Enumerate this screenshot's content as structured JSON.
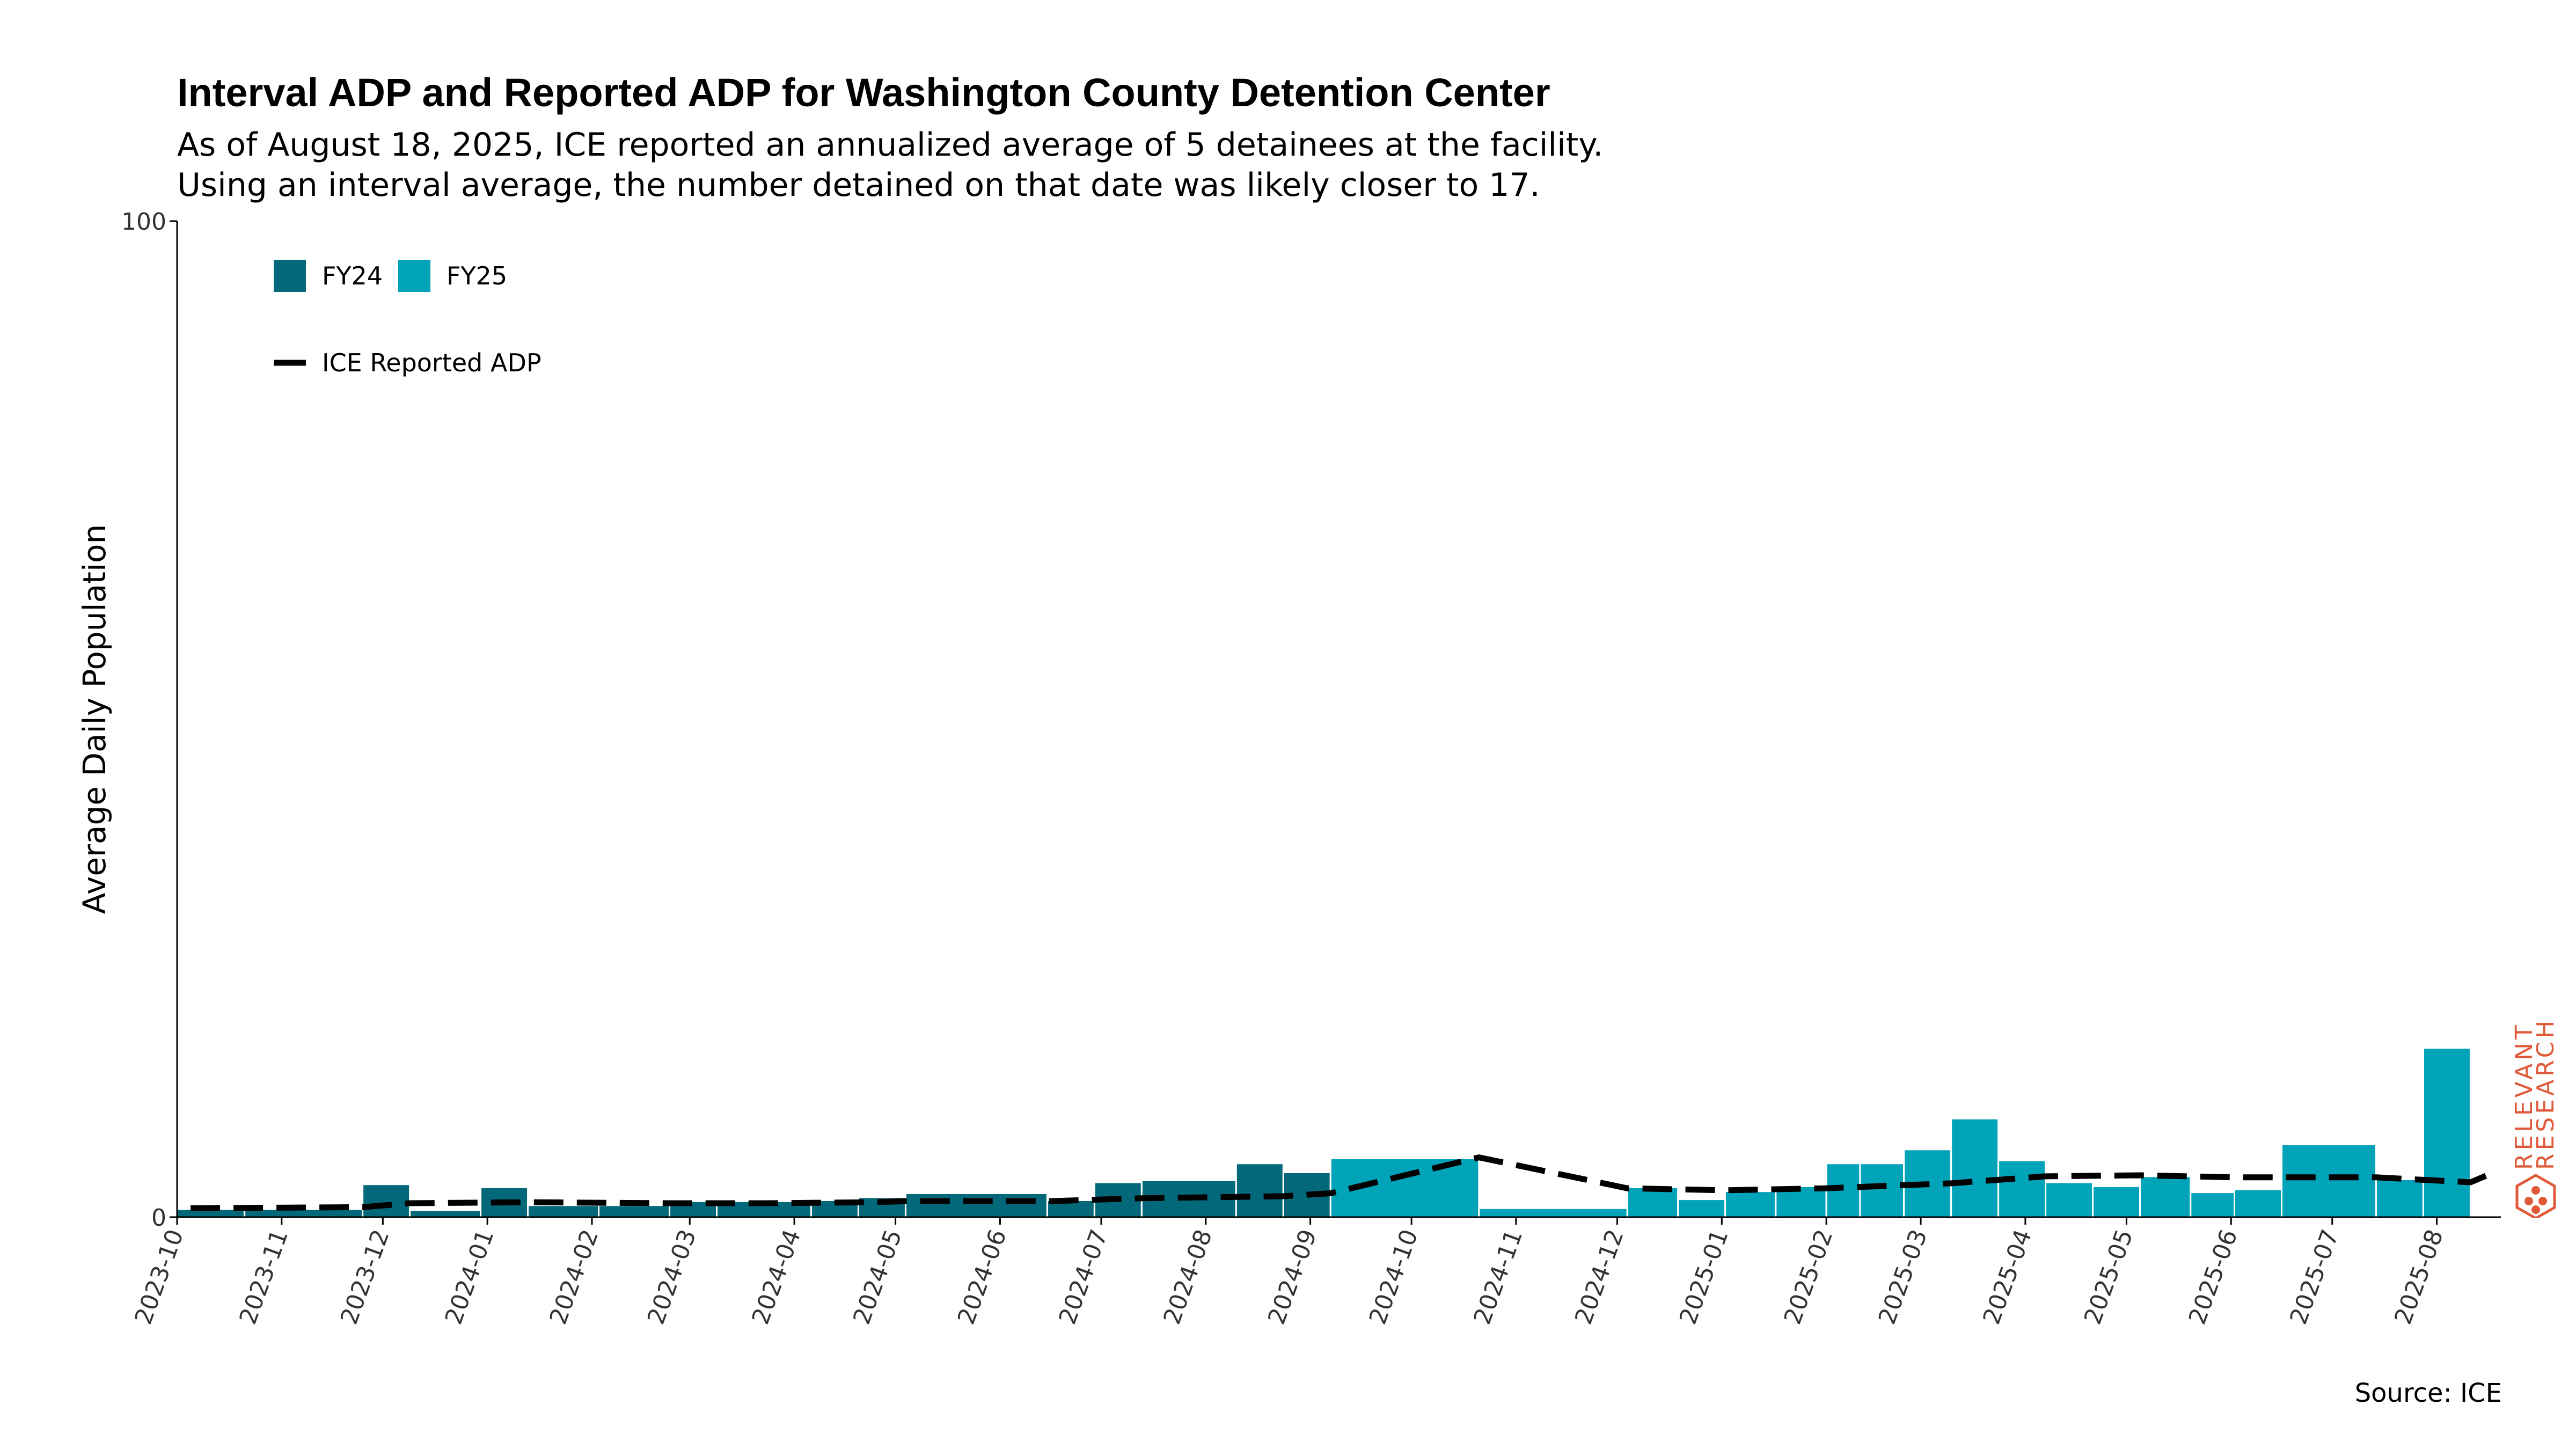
{
  "title": "Interval ADP and Reported ADP for Washington County Detention Center",
  "subtitle_lines": [
    "As of August 18, 2025, ICE reported an annualized average of 5 detainees at the facility.",
    "Using an interval average, the number detained on that date was likely closer to 17."
  ],
  "source": "Source: ICE",
  "logo_text": [
    "RELEVANT",
    "RESEARCH"
  ],
  "colors": {
    "FY24": "#03697a",
    "FY25": "#00a3b8",
    "line": "#000000",
    "logo": "#e05a3a"
  },
  "chart_data": {
    "type": "bar",
    "ylabel": "Average Daily Population",
    "ylim": [
      0,
      100
    ],
    "ytick_labels": [
      "0",
      "100"
    ],
    "x_tick_labels": [
      "2023-10",
      "2023-11",
      "2023-12",
      "2024-01",
      "2024-02",
      "2024-03",
      "2024-04",
      "2024-05",
      "2024-06",
      "2024-07",
      "2024-08",
      "2024-09",
      "2024-10",
      "2024-11",
      "2024-12",
      "2025-01",
      "2025-02",
      "2025-03",
      "2025-04",
      "2025-05",
      "2025-06",
      "2025-07",
      "2025-08"
    ],
    "legend": {
      "placement": "top-left",
      "bar_entries": [
        "FY24",
        "FY25"
      ],
      "line_entry": "ICE Reported ADP"
    },
    "bars": [
      {
        "start": "2023-10-01",
        "end": "2023-10-21",
        "value": 0.8,
        "fy": "FY24"
      },
      {
        "start": "2023-10-21",
        "end": "2023-11-25",
        "value": 0.8,
        "fy": "FY24"
      },
      {
        "start": "2023-11-25",
        "end": "2023-12-09",
        "value": 3.3,
        "fy": "FY24"
      },
      {
        "start": "2023-12-09",
        "end": "2023-12-30",
        "value": 0.7,
        "fy": "FY24"
      },
      {
        "start": "2023-12-30",
        "end": "2024-01-13",
        "value": 3.0,
        "fy": "FY24"
      },
      {
        "start": "2024-01-13",
        "end": "2024-02-03",
        "value": 1.2,
        "fy": "FY24"
      },
      {
        "start": "2024-02-03",
        "end": "2024-02-24",
        "value": 1.2,
        "fy": "FY24"
      },
      {
        "start": "2024-02-24",
        "end": "2024-03-09",
        "value": 1.6,
        "fy": "FY24"
      },
      {
        "start": "2024-03-09",
        "end": "2024-04-06",
        "value": 1.6,
        "fy": "FY24"
      },
      {
        "start": "2024-04-06",
        "end": "2024-04-20",
        "value": 1.7,
        "fy": "FY24"
      },
      {
        "start": "2024-04-20",
        "end": "2024-05-04",
        "value": 2.0,
        "fy": "FY24"
      },
      {
        "start": "2024-05-04",
        "end": "2024-06-15",
        "value": 2.4,
        "fy": "FY24"
      },
      {
        "start": "2024-06-15",
        "end": "2024-06-29",
        "value": 1.7,
        "fy": "FY24"
      },
      {
        "start": "2024-06-29",
        "end": "2024-07-13",
        "value": 3.5,
        "fy": "FY24"
      },
      {
        "start": "2024-07-13",
        "end": "2024-08-10",
        "value": 3.7,
        "fy": "FY24"
      },
      {
        "start": "2024-08-10",
        "end": "2024-08-24",
        "value": 5.4,
        "fy": "FY24"
      },
      {
        "start": "2024-08-24",
        "end": "2024-09-07",
        "value": 4.5,
        "fy": "FY24"
      },
      {
        "start": "2024-09-07",
        "end": "2024-10-21",
        "value": 5.9,
        "fy": "FY25"
      },
      {
        "start": "2024-10-21",
        "end": "2024-12-04",
        "value": 0.9,
        "fy": "FY25"
      },
      {
        "start": "2024-12-04",
        "end": "2024-12-19",
        "value": 3.0,
        "fy": "FY25"
      },
      {
        "start": "2024-12-19",
        "end": "2025-01-02",
        "value": 1.8,
        "fy": "FY25"
      },
      {
        "start": "2025-01-02",
        "end": "2025-01-17",
        "value": 2.6,
        "fy": "FY25"
      },
      {
        "start": "2025-01-17",
        "end": "2025-02-01",
        "value": 3.1,
        "fy": "FY25"
      },
      {
        "start": "2025-02-01",
        "end": "2025-02-11",
        "value": 5.4,
        "fy": "FY25"
      },
      {
        "start": "2025-02-11",
        "end": "2025-02-24",
        "value": 5.4,
        "fy": "FY25"
      },
      {
        "start": "2025-02-24",
        "end": "2025-03-10",
        "value": 6.8,
        "fy": "FY25"
      },
      {
        "start": "2025-03-10",
        "end": "2025-03-24",
        "value": 9.9,
        "fy": "FY25"
      },
      {
        "start": "2025-03-24",
        "end": "2025-04-07",
        "value": 5.7,
        "fy": "FY25"
      },
      {
        "start": "2025-04-07",
        "end": "2025-04-21",
        "value": 3.5,
        "fy": "FY25"
      },
      {
        "start": "2025-04-21",
        "end": "2025-05-05",
        "value": 3.1,
        "fy": "FY25"
      },
      {
        "start": "2025-05-05",
        "end": "2025-05-20",
        "value": 4.1,
        "fy": "FY25"
      },
      {
        "start": "2025-05-20",
        "end": "2025-06-02",
        "value": 2.5,
        "fy": "FY25"
      },
      {
        "start": "2025-06-02",
        "end": "2025-06-16",
        "value": 2.8,
        "fy": "FY25"
      },
      {
        "start": "2025-06-16",
        "end": "2025-07-14",
        "value": 7.3,
        "fy": "FY25"
      },
      {
        "start": "2025-07-14",
        "end": "2025-07-28",
        "value": 3.8,
        "fy": "FY25"
      },
      {
        "start": "2025-07-28",
        "end": "2025-08-11",
        "value": 17.0,
        "fy": "FY25"
      }
    ],
    "series": [
      {
        "name": "ICE Reported ADP",
        "type": "line",
        "x": [
          "2023-10-05",
          "2023-11-25",
          "2023-12-09",
          "2024-01-13",
          "2024-02-24",
          "2024-03-24",
          "2024-04-24",
          "2024-05-04",
          "2024-06-15",
          "2024-07-13",
          "2024-08-24",
          "2024-09-07",
          "2024-10-21",
          "2024-12-04",
          "2025-01-02",
          "2025-02-01",
          "2025-03-10",
          "2025-04-07",
          "2025-05-05",
          "2025-06-02",
          "2025-07-14",
          "2025-08-11",
          "2025-08-18"
        ],
        "values": [
          0.9,
          1.0,
          1.4,
          1.5,
          1.4,
          1.4,
          1.5,
          1.6,
          1.6,
          1.9,
          2.1,
          2.4,
          6.0,
          2.9,
          2.7,
          2.9,
          3.4,
          4.1,
          4.2,
          4.0,
          4.0,
          3.5,
          4.5
        ]
      }
    ]
  }
}
